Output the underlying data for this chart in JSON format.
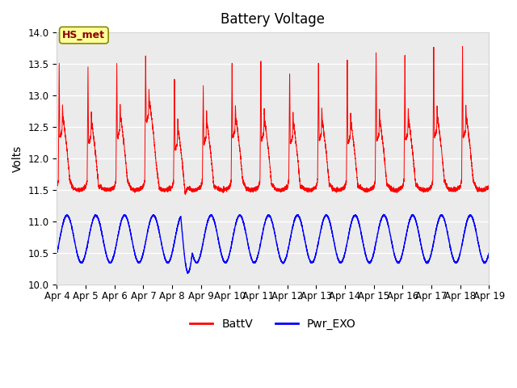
{
  "title": "Battery Voltage",
  "ylabel": "Volts",
  "xlabel": "",
  "ylim": [
    10.0,
    14.0
  ],
  "yticks": [
    10.0,
    10.5,
    11.0,
    11.5,
    12.0,
    12.5,
    13.0,
    13.5,
    14.0
  ],
  "xtick_labels": [
    "Apr 4",
    "Apr 5",
    "Apr 6",
    "Apr 7",
    "Apr 8",
    "Apr 9",
    "Apr 10",
    "Apr 11",
    "Apr 12",
    "Apr 13",
    "Apr 14",
    "Apr 15",
    "Apr 16",
    "Apr 17",
    "Apr 18",
    "Apr 19"
  ],
  "annotation_text": "HS_met",
  "annotation_color": "#8B0000",
  "annotation_bg": "#FFFF99",
  "bg_color": "#EBEBEB",
  "line1_color": "red",
  "line2_color": "blue",
  "legend_labels": [
    "BattV",
    "Pwr_EXO"
  ],
  "title_fontsize": 12,
  "label_fontsize": 10,
  "tick_fontsize": 8.5
}
